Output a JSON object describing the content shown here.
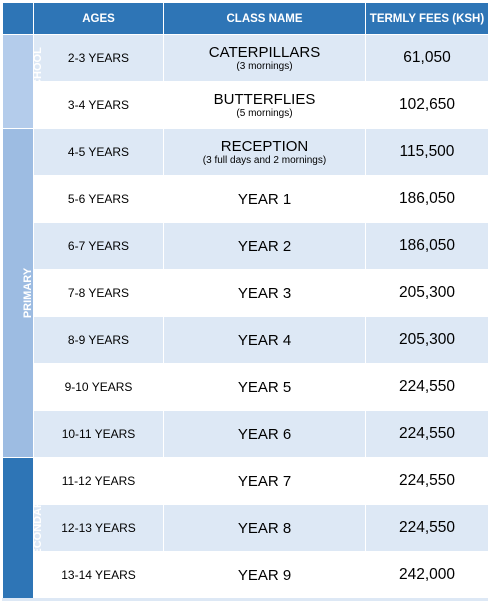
{
  "headers": {
    "ages": "AGES",
    "class_name": "CLASS NAME",
    "fees": "TERMLY FEES (KSH)"
  },
  "groups": {
    "preschool": "PRESCHOOL",
    "primary": "PRIMARY",
    "secondary": "SECONDARY"
  },
  "rows": [
    {
      "age": "2-3 YEARS",
      "class": "CATERPILLARS",
      "note": "(3 mornings)",
      "fee": "61,050"
    },
    {
      "age": "3-4 YEARS",
      "class": "BUTTERFLIES",
      "note": "(5 mornings)",
      "fee": "102,650"
    },
    {
      "age": "4-5 YEARS",
      "class": "RECEPTION",
      "note": "(3 full days and 2 mornings)",
      "fee": "115,500"
    },
    {
      "age": "5-6 YEARS",
      "class": "YEAR 1",
      "fee": "186,050"
    },
    {
      "age": "6-7 YEARS",
      "class": "YEAR 2",
      "fee": "186,050"
    },
    {
      "age": "7-8 YEARS",
      "class": "YEAR 3",
      "fee": "205,300"
    },
    {
      "age": "8-9 YEARS",
      "class": "YEAR 4",
      "fee": "205,300"
    },
    {
      "age": "9-10 YEARS",
      "class": "YEAR 5",
      "fee": "224,550"
    },
    {
      "age": "10-11 YEARS",
      "class": "YEAR 6",
      "fee": "224,550"
    },
    {
      "age": "11-12 YEARS",
      "class": "YEAR 7",
      "fee": "224,550"
    },
    {
      "age": "12-13 YEARS",
      "class": "YEAR 8",
      "fee": "224,550"
    },
    {
      "age": "13-14 YEARS",
      "class": "YEAR 9",
      "fee": "242,000"
    }
  ],
  "colors": {
    "header_bg": "#2e75b6",
    "row_shade": "#dde8f5",
    "preschool_band": "#b4cceb",
    "primary_band": "#9dbce2",
    "secondary_band": "#2e75b6"
  }
}
